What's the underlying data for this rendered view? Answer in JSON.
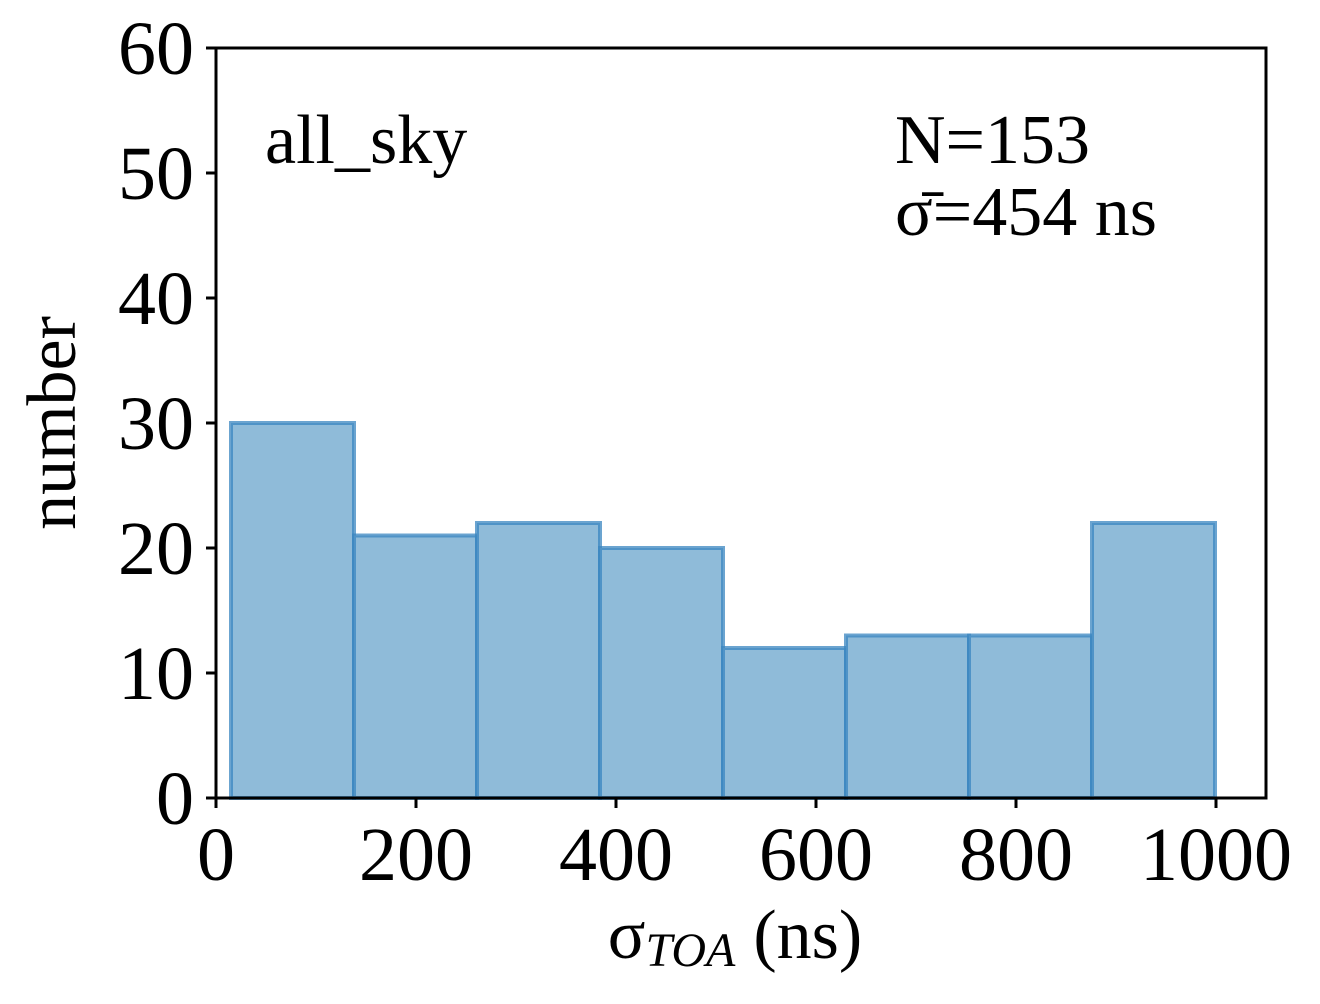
{
  "chart_data": {
    "type": "bar",
    "title": "",
    "xlabel": "(ns)",
    "xlabel_symbol": "σ",
    "xlabel_subscript": "TOA",
    "ylabel": "number",
    "xlim": [
      0,
      1050
    ],
    "ylim": [
      0,
      60
    ],
    "xticks": [
      "0",
      "200",
      "400",
      "600",
      "800",
      "1000"
    ],
    "xtick_values": [
      0,
      200,
      400,
      600,
      800,
      1000
    ],
    "yticks": [
      "0",
      "10",
      "20",
      "30",
      "40",
      "50",
      "60"
    ],
    "ytick_values": [
      0,
      10,
      20,
      30,
      40,
      50,
      60
    ],
    "bin_edges": [
      15,
      138,
      261,
      384,
      507,
      630,
      753,
      876,
      999
    ],
    "counts": [
      30,
      21,
      22,
      20,
      12,
      13,
      13,
      22
    ],
    "bar_color": "#8fbbd9",
    "bar_edge_color": "#3a85c0",
    "grid": false,
    "annotations": {
      "label": "all_sky",
      "n_text": "N=153",
      "sigma_text": "σ̄=454 ns"
    }
  }
}
